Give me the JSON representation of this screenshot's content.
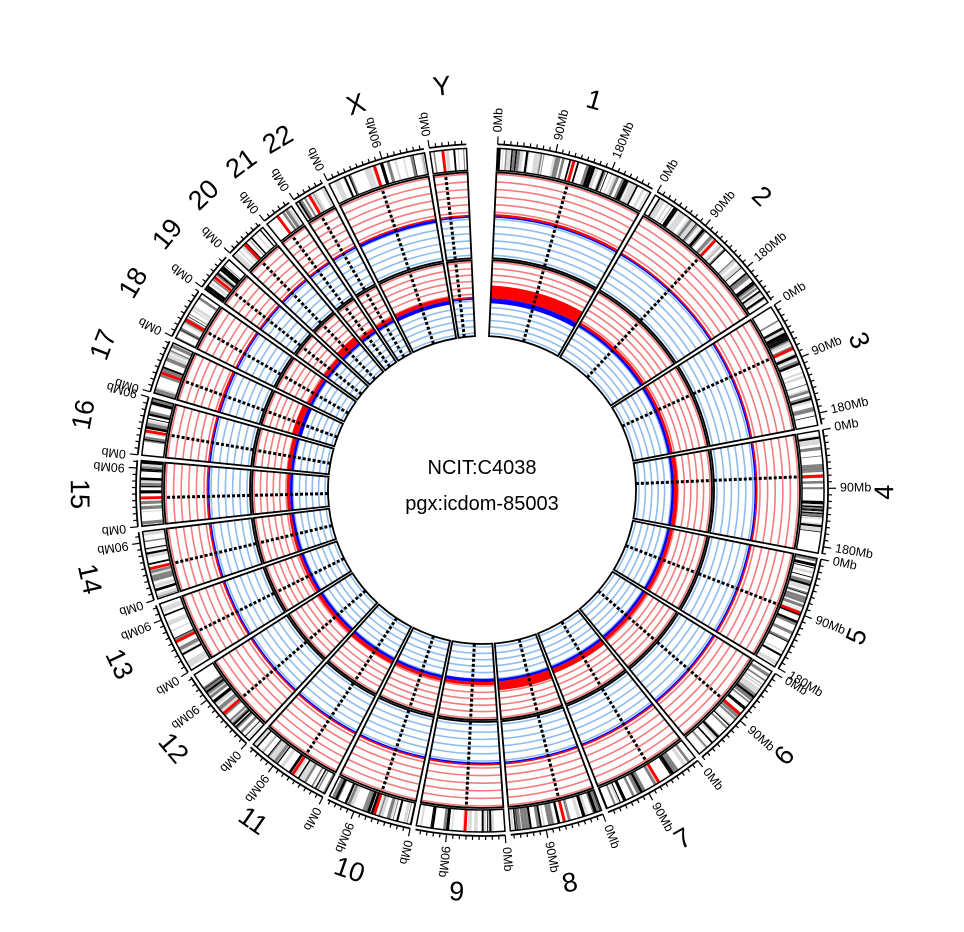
{
  "chart_data": {
    "type": "circos",
    "center_labels": [
      "NCIT:C4038",
      "pgx:icdom-85003"
    ],
    "tick_unit": "Mb",
    "chromosomes": [
      {
        "name": "1",
        "length_mb": 249,
        "tick_labels": [
          "0Mb",
          "90Mb",
          "180Mb"
        ]
      },
      {
        "name": "2",
        "length_mb": 243,
        "tick_labels": [
          "0Mb",
          "90Mb",
          "180Mb"
        ]
      },
      {
        "name": "3",
        "length_mb": 198,
        "tick_labels": [
          "0Mb",
          "90Mb",
          "180Mb"
        ]
      },
      {
        "name": "4",
        "length_mb": 191,
        "tick_labels": [
          "0Mb",
          "90Mb",
          "180Mb"
        ]
      },
      {
        "name": "5",
        "length_mb": 181,
        "tick_labels": [
          "0Mb",
          "90Mb",
          "180Mb"
        ]
      },
      {
        "name": "6",
        "length_mb": 171,
        "tick_labels": [
          "0Mb",
          "90Mb"
        ]
      },
      {
        "name": "7",
        "length_mb": 159,
        "tick_labels": [
          "0Mb",
          "90Mb"
        ]
      },
      {
        "name": "8",
        "length_mb": 145,
        "tick_labels": [
          "0Mb",
          "90Mb"
        ]
      },
      {
        "name": "9",
        "length_mb": 138,
        "tick_labels": [
          "0Mb",
          "90Mb"
        ]
      },
      {
        "name": "10",
        "length_mb": 134,
        "tick_labels": [
          "0Mb",
          "90Mb"
        ]
      },
      {
        "name": "11",
        "length_mb": 135,
        "tick_labels": [
          "0Mb",
          "90Mb"
        ]
      },
      {
        "name": "12",
        "length_mb": 133,
        "tick_labels": [
          "0Mb",
          "90Mb"
        ]
      },
      {
        "name": "13",
        "length_mb": 114,
        "tick_labels": [
          "0Mb",
          "90Mb"
        ]
      },
      {
        "name": "14",
        "length_mb": 107,
        "tick_labels": [
          "0Mb",
          "90Mb"
        ]
      },
      {
        "name": "15",
        "length_mb": 102,
        "tick_labels": [
          "0Mb",
          "90Mb"
        ]
      },
      {
        "name": "16",
        "length_mb": 90,
        "tick_labels": [
          "0Mb",
          "90Mb"
        ]
      },
      {
        "name": "17",
        "length_mb": 83,
        "tick_labels": [
          "0Mb"
        ]
      },
      {
        "name": "18",
        "length_mb": 80,
        "tick_labels": [
          "0Mb"
        ]
      },
      {
        "name": "19",
        "length_mb": 59,
        "tick_labels": [
          "0Mb"
        ]
      },
      {
        "name": "20",
        "length_mb": 64,
        "tick_labels": [
          "0Mb"
        ]
      },
      {
        "name": "21",
        "length_mb": 47,
        "tick_labels": [
          "0Mb"
        ]
      },
      {
        "name": "22",
        "length_mb": 51,
        "tick_labels": [
          "0Mb"
        ]
      },
      {
        "name": "X",
        "length_mb": 156,
        "tick_labels": [
          "0Mb",
          "90Mb"
        ]
      },
      {
        "name": "Y",
        "length_mb": 57,
        "tick_labels": [
          "0Mb"
        ]
      }
    ],
    "tracks": [
      {
        "name": "",
        "color": "#ff0000",
        "grid_color": "#f47c7c",
        "direction": "outward",
        "ring": "outer"
      },
      {
        "name": "",
        "color": "#0000ff",
        "grid_color": "#8fbcf0",
        "direction": "inward",
        "ring": "outer"
      },
      {
        "name": "",
        "color": "#ff0000",
        "grid_color": "#f47c7c",
        "direction": "outward",
        "ring": "inner"
      },
      {
        "name": "",
        "color": "#0000ff",
        "grid_color": "#8fbcf0",
        "direction": "inward",
        "ring": "inner"
      }
    ],
    "cnv_frequency_percent": [
      {
        "chr": "1",
        "outer_gain": 3,
        "outer_loss": 2,
        "inner_gain": 20,
        "inner_loss": 8
      },
      {
        "chr": "2",
        "outer_gain": 1,
        "outer_loss": 1,
        "inner_gain": 4,
        "inner_loss": 4
      },
      {
        "chr": "3",
        "outer_gain": 1,
        "outer_loss": 1,
        "inner_gain": 4,
        "inner_loss": 4
      },
      {
        "chr": "4",
        "outer_gain": 1,
        "outer_loss": 2,
        "inner_gain": 6,
        "inner_loss": 4
      },
      {
        "chr": "5",
        "outer_gain": 1,
        "outer_loss": 1,
        "inner_gain": 5,
        "inner_loss": 4
      },
      {
        "chr": "6",
        "outer_gain": 1,
        "outer_loss": 1,
        "inner_gain": 5,
        "inner_loss": 4
      },
      {
        "chr": "7",
        "outer_gain": 2,
        "outer_loss": 1,
        "inner_gain": 8,
        "inner_loss": 4
      },
      {
        "chr": "8",
        "outer_gain": 2,
        "outer_loss": 1,
        "inner_gain": 14,
        "inner_loss": 4
      },
      {
        "chr": "9",
        "outer_gain": 1,
        "outer_loss": 1,
        "inner_gain": 5,
        "inner_loss": 5
      },
      {
        "chr": "10",
        "outer_gain": 1,
        "outer_loss": 1,
        "inner_gain": 5,
        "inner_loss": 4
      },
      {
        "chr": "11",
        "outer_gain": 2,
        "outer_loss": 1,
        "inner_gain": 6,
        "inner_loss": 4
      },
      {
        "chr": "12",
        "outer_gain": 1,
        "outer_loss": 1,
        "inner_gain": 5,
        "inner_loss": 4
      },
      {
        "chr": "13",
        "outer_gain": 1,
        "outer_loss": 1,
        "inner_gain": 4,
        "inner_loss": 4
      },
      {
        "chr": "14",
        "outer_gain": 1,
        "outer_loss": 1,
        "inner_gain": 4,
        "inner_loss": 4
      },
      {
        "chr": "15",
        "outer_gain": 1,
        "outer_loss": 1,
        "inner_gain": 5,
        "inner_loss": 4
      },
      {
        "chr": "16",
        "outer_gain": 2,
        "outer_loss": 1,
        "inner_gain": 6,
        "inner_loss": 4
      },
      {
        "chr": "17",
        "outer_gain": 3,
        "outer_loss": 1,
        "inner_gain": 10,
        "inner_loss": 6
      },
      {
        "chr": "18",
        "outer_gain": 2,
        "outer_loss": 1,
        "inner_gain": 5,
        "inner_loss": 4
      },
      {
        "chr": "19",
        "outer_gain": 1,
        "outer_loss": 1,
        "inner_gain": 6,
        "inner_loss": 4
      },
      {
        "chr": "20",
        "outer_gain": 2,
        "outer_loss": 1,
        "inner_gain": 12,
        "inner_loss": 4
      },
      {
        "chr": "21",
        "outer_gain": 1,
        "outer_loss": 1,
        "inner_gain": 5,
        "inner_loss": 4
      },
      {
        "chr": "22",
        "outer_gain": 1,
        "outer_loss": 1,
        "inner_gain": 5,
        "inner_loss": 4
      },
      {
        "chr": "X",
        "outer_gain": 1,
        "outer_loss": 4,
        "inner_gain": 6,
        "inner_loss": 6
      },
      {
        "chr": "Y",
        "outer_gain": 0,
        "outer_loss": 0,
        "inner_gain": 0,
        "inner_loss": 0
      }
    ],
    "ideogram_colors": {
      "band_dark": "#000000",
      "band_mid": "#7f7f7f",
      "band_light": "#d9d9d9",
      "centromere": "#ff0000",
      "stalk": "#6a7fd0"
    },
    "grid": true,
    "legend": "none"
  }
}
